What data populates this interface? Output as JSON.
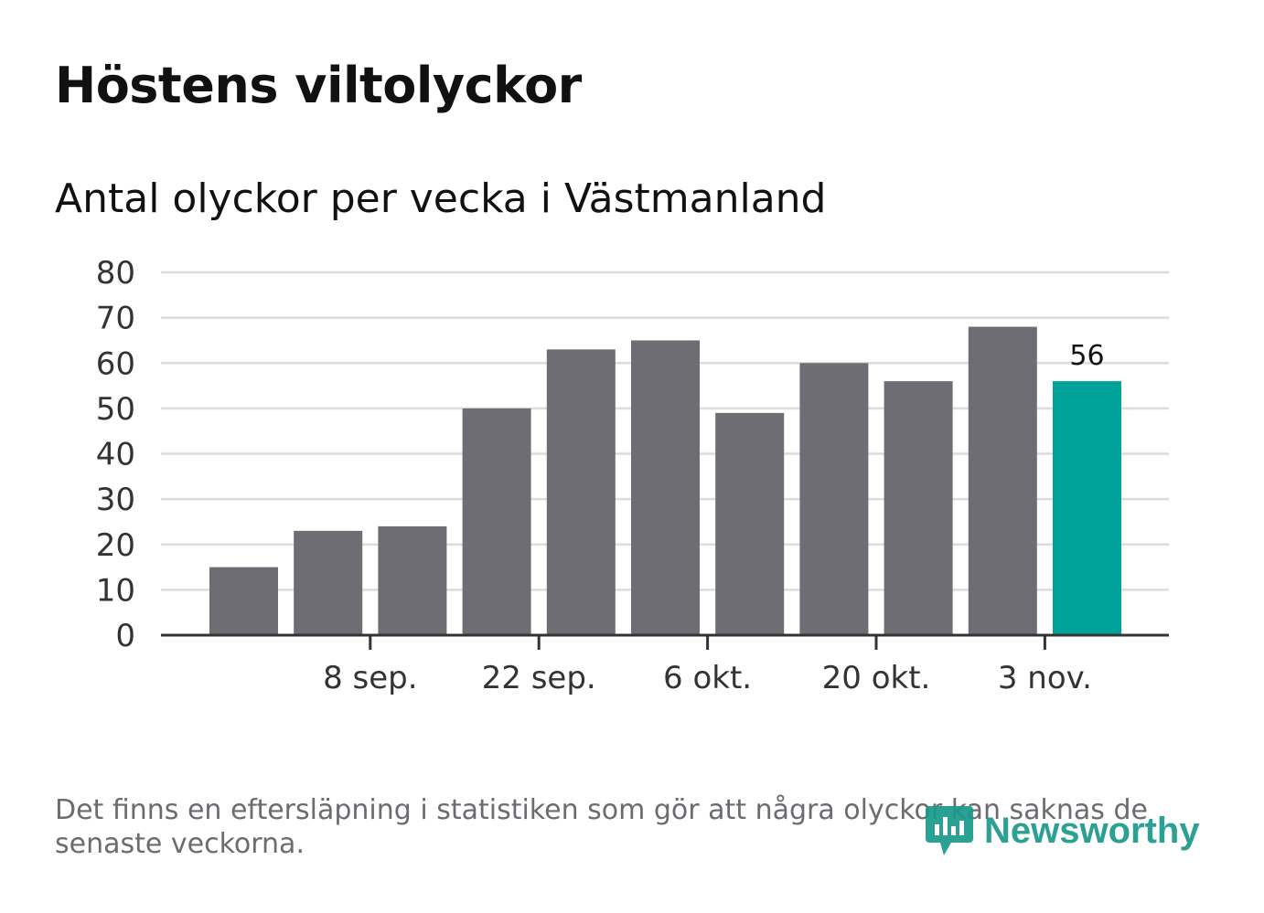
{
  "title": "Höstens viltolyckor",
  "subtitle": "Antal olyckor per vecka i Västmanland",
  "note": "Det finns en eftersläpning i statistiken som gör att några olyckor kan saknas de senaste veckorna.",
  "brand": {
    "name": "Newsworthy",
    "icon": "newsworthy-logo-icon"
  },
  "colors": {
    "bar": "#6e6d73",
    "highlight": "#00a39a",
    "grid": "#dcdcdc",
    "axis": "#333333",
    "text": "#333333"
  },
  "chart_data": {
    "type": "bar",
    "title": "",
    "xlabel": "",
    "ylabel": "",
    "values": [
      15,
      23,
      24,
      50,
      63,
      65,
      49,
      60,
      56,
      68,
      56
    ],
    "highlight_index": 10,
    "highlight_label": "56",
    "x_tick_labels": [
      {
        "bar_index": 1.5,
        "label": "8 sep."
      },
      {
        "bar_index": 3.5,
        "label": "22 sep."
      },
      {
        "bar_index": 5.5,
        "label": "6 okt."
      },
      {
        "bar_index": 7.5,
        "label": "20 okt."
      },
      {
        "bar_index": 9.5,
        "label": "3 nov."
      }
    ],
    "ylim": [
      0,
      80
    ],
    "yticks": [
      0,
      10,
      20,
      30,
      40,
      50,
      60,
      70,
      80
    ],
    "grid": true
  }
}
